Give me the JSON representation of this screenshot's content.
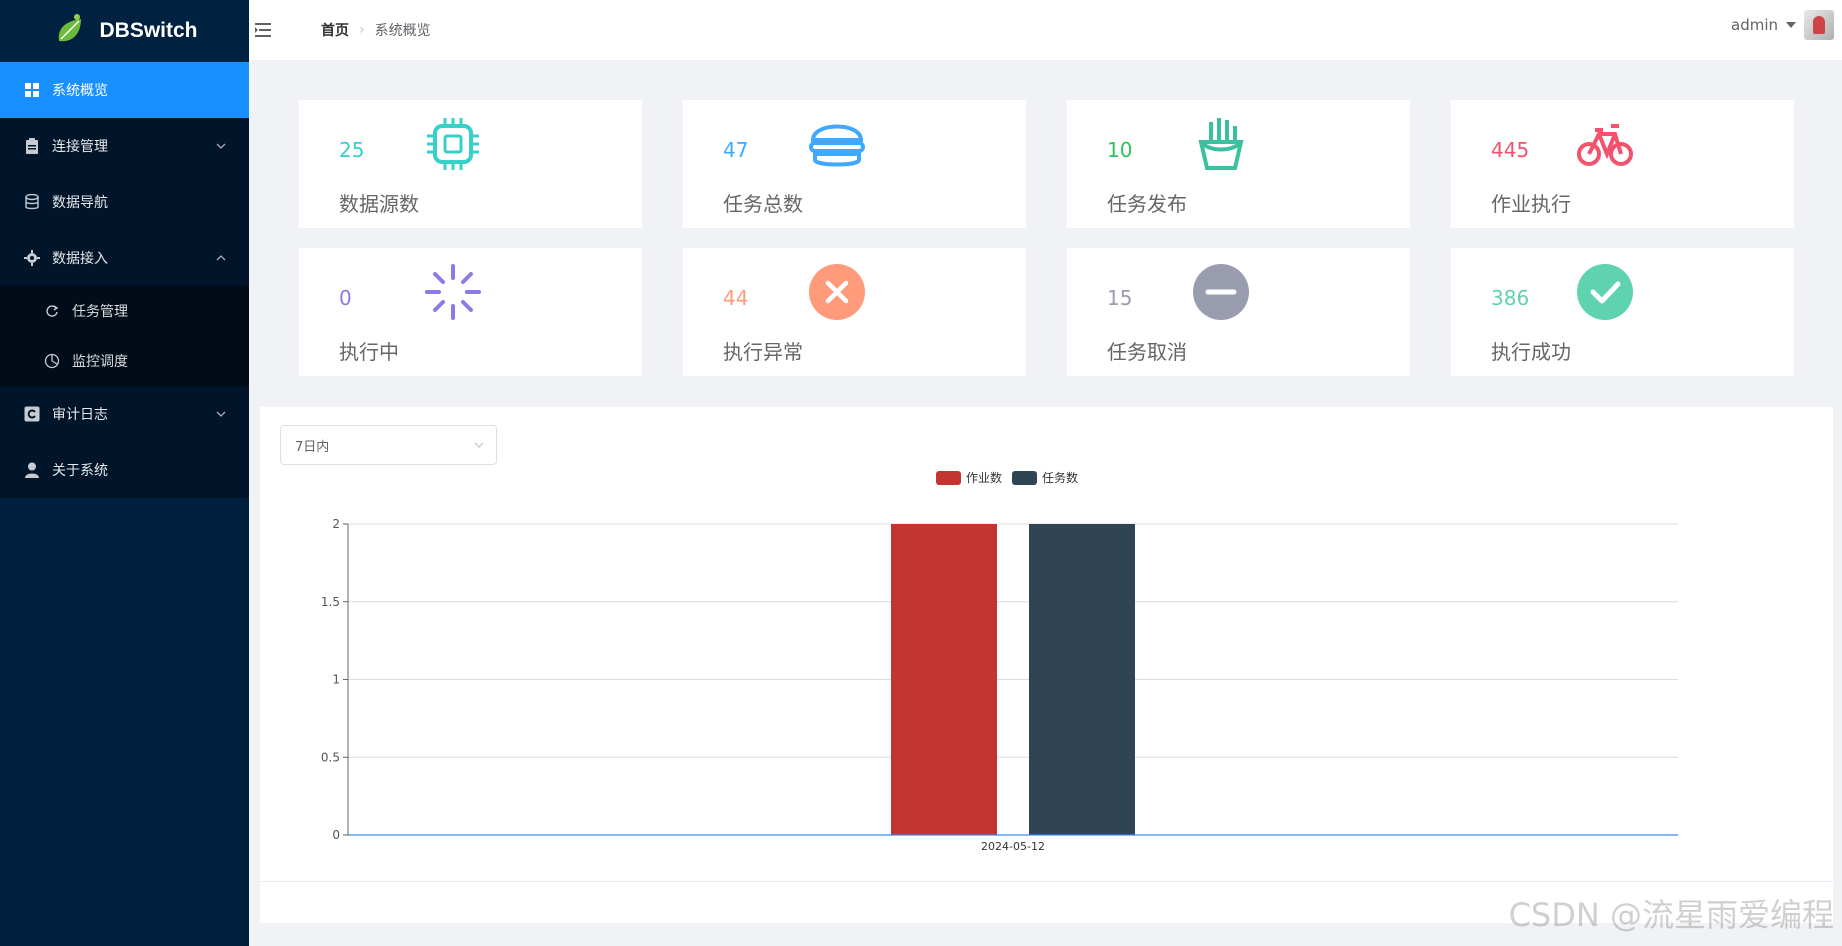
{
  "app": {
    "name": "DBSwitch"
  },
  "sidebar": {
    "items": [
      {
        "label": "系统概览",
        "icon": "dashboard-icon",
        "active": true
      },
      {
        "label": "连接管理",
        "icon": "clipboard-icon"
      },
      {
        "label": "数据导航",
        "icon": "database-icon"
      },
      {
        "label": "数据接入",
        "icon": "gear-icon"
      },
      {
        "label": "任务管理",
        "icon": "refresh-icon"
      },
      {
        "label": "监控调度",
        "icon": "clock-icon"
      },
      {
        "label": "审计日志",
        "icon": "copyright-icon"
      },
      {
        "label": "关于系统",
        "icon": "user-icon"
      }
    ]
  },
  "header": {
    "breadcrumb_home": "首页",
    "breadcrumb_current": "系统概览",
    "user": "admin"
  },
  "stats": [
    {
      "value": "25",
      "label": "数据源数",
      "color": "#36cfc9",
      "icon": "chip-icon"
    },
    {
      "value": "47",
      "label": "任务总数",
      "color": "#40a9ff",
      "icon": "burger-icon"
    },
    {
      "value": "10",
      "label": "任务发布",
      "color": "#2fc25b",
      "icon": "fries-icon"
    },
    {
      "value": "445",
      "label": "作业执行",
      "color": "#f4516c",
      "icon": "bicycle-icon"
    },
    {
      "value": "0",
      "label": "执行中",
      "color": "#8c7ae6",
      "icon": "loading-icon"
    },
    {
      "value": "44",
      "label": "执行异常",
      "color": "#ff9a7a",
      "icon": "error-circle-icon"
    },
    {
      "value": "15",
      "label": "任务取消",
      "color": "#9a9cb0",
      "icon": "minus-circle-icon"
    },
    {
      "value": "386",
      "label": "执行成功",
      "color": "#5fd3b0",
      "icon": "check-circle-icon"
    }
  ],
  "filter": {
    "selected": "7日内"
  },
  "chart_data": {
    "type": "bar",
    "categories": [
      "2024-05-12"
    ],
    "series": [
      {
        "name": "作业数",
        "values": [
          2
        ],
        "color": "#c23531"
      },
      {
        "name": "任务数",
        "values": [
          2
        ],
        "color": "#2f4554"
      }
    ],
    "yticks": [
      "0",
      "0.5",
      "1",
      "1.5",
      "2"
    ],
    "ylim": [
      0,
      2
    ],
    "legend": "top-center",
    "grid": true
  },
  "watermark": "CSDN @流星雨爱编程"
}
